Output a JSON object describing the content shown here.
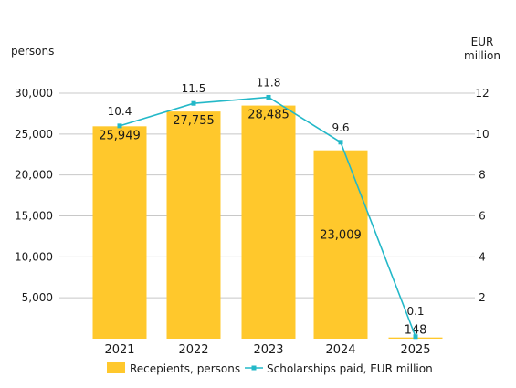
{
  "chart_data": {
    "type": "bar",
    "categories": [
      "2021",
      "2022",
      "2023",
      "2024",
      "2025"
    ],
    "series": [
      {
        "name": "Recepients, persons",
        "kind": "bar",
        "axis": "left",
        "values": [
          25949,
          27755,
          28485,
          23009,
          148
        ],
        "labels": [
          "25,949",
          "27,755",
          "28,485",
          "23,009",
          "148"
        ],
        "color": "#FFC82C"
      },
      {
        "name": "Scholarships paid, EUR million",
        "kind": "line",
        "axis": "right",
        "values": [
          10.4,
          11.5,
          11.8,
          9.6,
          0.1
        ],
        "labels": [
          "10.4",
          "11.5",
          "11.8",
          "9.6",
          "0.1"
        ],
        "color": "#23B8C8"
      }
    ],
    "y_left": {
      "unit_label": "persons",
      "ylim": [
        0,
        30000
      ],
      "ticks": [
        5000,
        10000,
        15000,
        20000,
        25000,
        30000
      ],
      "tick_labels": [
        "5,000",
        "10,000",
        "15,000",
        "20,000",
        "25,000",
        "30,000"
      ]
    },
    "y_right": {
      "unit_label_lines": [
        "EUR",
        "million"
      ],
      "ylim": [
        0,
        12
      ],
      "ticks": [
        2,
        4,
        6,
        8,
        10,
        12
      ],
      "tick_labels": [
        "2",
        "4",
        "6",
        "8",
        "10",
        "12"
      ]
    },
    "grid": true,
    "legend": "bottom"
  }
}
